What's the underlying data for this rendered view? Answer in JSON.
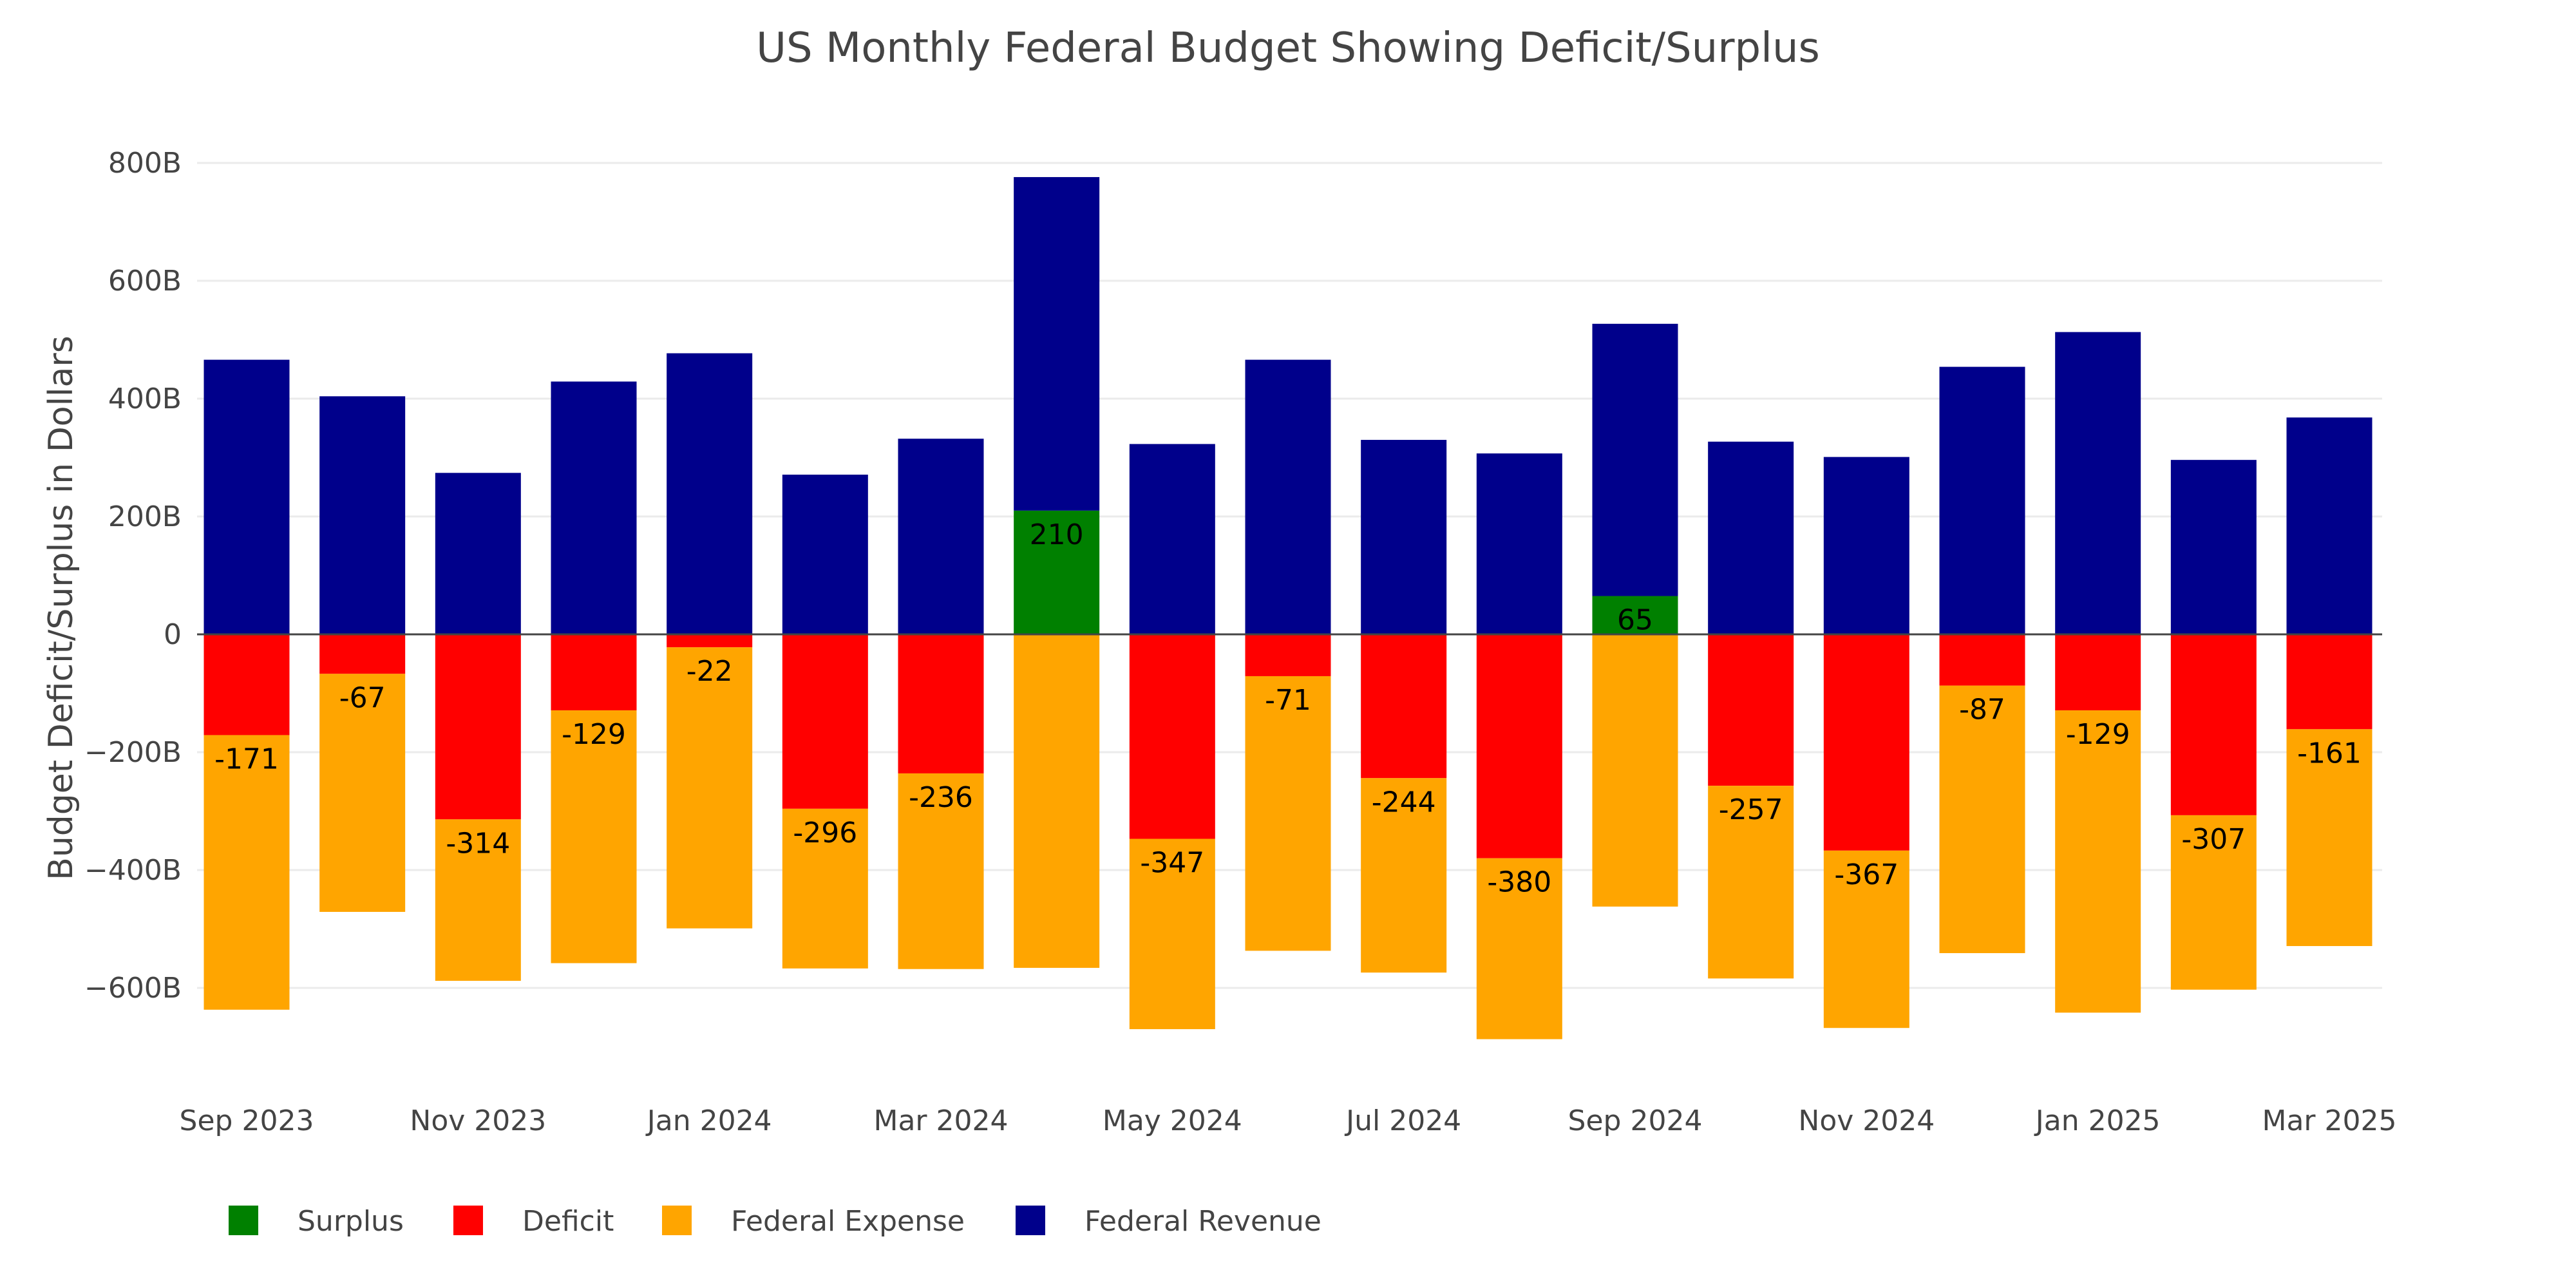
{
  "chart_data": {
    "type": "bar",
    "title": "US Monthly Federal Budget Showing Deficit/Surplus",
    "xlabel": "",
    "ylabel": "Budget Deficit/Surplus in Dollars",
    "ylim": [
      -740,
      820
    ],
    "y_ticks": [
      {
        "value": 800,
        "label": "800B"
      },
      {
        "value": 600,
        "label": "600B"
      },
      {
        "value": 400,
        "label": "400B"
      },
      {
        "value": 200,
        "label": "200B"
      },
      {
        "value": 0,
        "label": "0"
      },
      {
        "value": -200,
        "label": "−200B"
      },
      {
        "value": -400,
        "label": "−400B"
      },
      {
        "value": -600,
        "label": "−600B"
      }
    ],
    "x_tick_labels": [
      "Sep 2023",
      "Nov 2023",
      "Jan 2024",
      "Mar 2024",
      "May 2024",
      "Jul 2024",
      "Sep 2024",
      "Nov 2024",
      "Jan 2025",
      "Mar 2025"
    ],
    "grid": true,
    "legend_position": "bottom-left",
    "units": "billions USD",
    "categories": [
      "Sep 2023",
      "Oct 2023",
      "Nov 2023",
      "Dec 2023",
      "Jan 2024",
      "Feb 2024",
      "Mar 2024",
      "Apr 2024",
      "May 2024",
      "Jun 2024",
      "Jul 2024",
      "Aug 2024",
      "Sep 2024",
      "Oct 2024",
      "Nov 2024",
      "Dec 2024",
      "Jan 2025",
      "Feb 2025",
      "Mar 2025"
    ],
    "series": [
      {
        "name": "Surplus",
        "color": "#008000",
        "values": [
          null,
          null,
          null,
          null,
          null,
          null,
          null,
          210,
          null,
          null,
          null,
          null,
          65,
          null,
          null,
          null,
          null,
          null,
          null
        ]
      },
      {
        "name": "Deficit",
        "color": "#ff0000",
        "values": [
          -171,
          -67,
          -314,
          -129,
          -22,
          -296,
          -236,
          null,
          -347,
          -71,
          -244,
          -380,
          null,
          -257,
          -367,
          -87,
          -129,
          -307,
          -161
        ]
      },
      {
        "name": "Federal Expense",
        "color": "#ffa500",
        "values": [
          -637,
          -471,
          -588,
          -558,
          -499,
          -567,
          -568,
          -566,
          -670,
          -537,
          -574,
          -687,
          -462,
          -584,
          -668,
          -541,
          -642,
          -603,
          -529
        ]
      },
      {
        "name": "Federal Revenue",
        "color": "#00008b",
        "values": [
          466,
          404,
          274,
          429,
          477,
          271,
          332,
          776,
          323,
          466,
          330,
          307,
          527,
          327,
          301,
          454,
          513,
          296,
          368
        ]
      }
    ],
    "data_labels": [
      "-171",
      "-67",
      "-314",
      "-129",
      "-22",
      "-296",
      "-236",
      "210",
      "-347",
      "-71",
      "-244",
      "-380",
      "65",
      "-257",
      "-367",
      "-87",
      "-129",
      "-307",
      "-161"
    ]
  }
}
